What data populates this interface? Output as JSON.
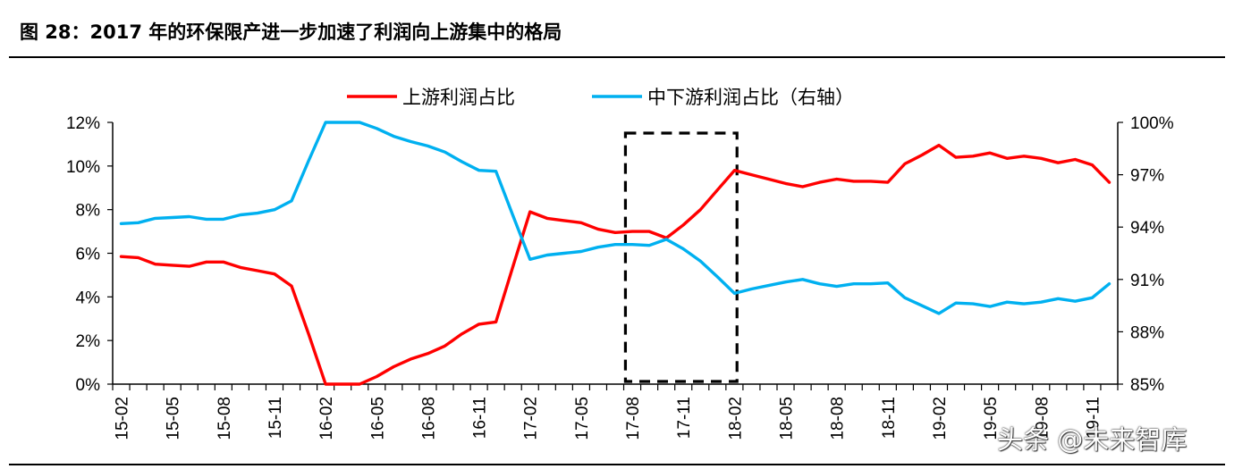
{
  "figure": {
    "title": "图 28：2017 年的环保限产进一步加速了利润向上游集中的格局",
    "watermark": "头条 @未来智库"
  },
  "chart_data": {
    "type": "line",
    "categories": [
      "15-02",
      "15-03",
      "15-04",
      "15-05",
      "15-06",
      "15-07",
      "15-08",
      "15-09",
      "15-10",
      "15-11",
      "15-12",
      "16-01",
      "16-02",
      "16-03",
      "16-04",
      "16-05",
      "16-06",
      "16-07",
      "16-08",
      "16-09",
      "16-10",
      "16-11",
      "16-12",
      "17-01",
      "17-02",
      "17-03",
      "17-04",
      "17-05",
      "17-06",
      "17-07",
      "17-08",
      "17-09",
      "17-10",
      "17-11",
      "17-12",
      "18-01",
      "18-02",
      "18-03",
      "18-04",
      "18-05",
      "18-06",
      "18-07",
      "18-08",
      "18-09",
      "18-10",
      "18-11",
      "18-12",
      "19-01",
      "19-02",
      "19-03",
      "19-04",
      "19-05",
      "19-06",
      "19-07",
      "19-08",
      "19-09",
      "19-10",
      "19-11",
      "19-12"
    ],
    "x_tick_labels": [
      "15-02",
      "15-05",
      "15-08",
      "15-11",
      "16-02",
      "16-05",
      "16-08",
      "16-11",
      "17-02",
      "17-05",
      "17-08",
      "17-11",
      "18-02",
      "18-05",
      "18-08",
      "18-11",
      "19-02",
      "19-05",
      "19-08",
      "19-11"
    ],
    "series": [
      {
        "name": "上游利润占比",
        "axis": "left",
        "color": "#ff0000",
        "values": [
          5.85,
          5.8,
          5.5,
          5.45,
          5.4,
          5.6,
          5.6,
          5.35,
          5.2,
          5.05,
          4.5,
          2.3,
          0.0,
          0.0,
          0.0,
          0.35,
          0.8,
          1.15,
          1.4,
          1.75,
          2.3,
          2.75,
          2.85,
          5.4,
          7.9,
          7.6,
          7.5,
          7.4,
          7.1,
          6.95,
          7.0,
          7.0,
          6.7,
          7.3,
          8.0,
          8.9,
          9.8,
          9.6,
          9.4,
          9.2,
          9.05,
          9.25,
          9.4,
          9.3,
          9.3,
          9.25,
          10.1,
          10.5,
          10.95,
          10.4,
          10.45,
          10.6,
          10.35,
          10.45,
          10.35,
          10.15,
          10.3,
          10.05,
          9.25
        ]
      },
      {
        "name": "中下游利润占比（右轴）",
        "axis": "right",
        "color": "#00b0f0",
        "values": [
          94.2,
          94.25,
          94.5,
          94.55,
          94.6,
          94.45,
          94.45,
          94.7,
          94.8,
          95.0,
          95.5,
          97.8,
          100.0,
          100.0,
          100.0,
          99.65,
          99.2,
          98.9,
          98.65,
          98.3,
          97.75,
          97.25,
          97.2,
          94.65,
          92.15,
          92.4,
          92.5,
          92.6,
          92.85,
          93.0,
          93.0,
          92.95,
          93.3,
          92.75,
          92.05,
          91.15,
          90.2,
          90.45,
          90.65,
          90.85,
          91.0,
          90.75,
          90.6,
          90.75,
          90.75,
          90.8,
          89.95,
          89.5,
          89.05,
          89.65,
          89.6,
          89.45,
          89.7,
          89.6,
          89.7,
          89.9,
          89.75,
          89.95,
          90.75
        ]
      }
    ],
    "y_left": {
      "min": 0,
      "max": 12,
      "ticks": [
        "0%",
        "2%",
        "4%",
        "6%",
        "8%",
        "10%",
        "12%"
      ]
    },
    "y_right": {
      "min": 85,
      "max": 100,
      "ticks": [
        "85%",
        "88%",
        "91%",
        "94%",
        "97%",
        "100%"
      ]
    },
    "highlight_box": {
      "style": "dashed",
      "from_category": "17-08",
      "to_category": "18-02"
    },
    "legend_placement": "top-center",
    "grid": false
  }
}
